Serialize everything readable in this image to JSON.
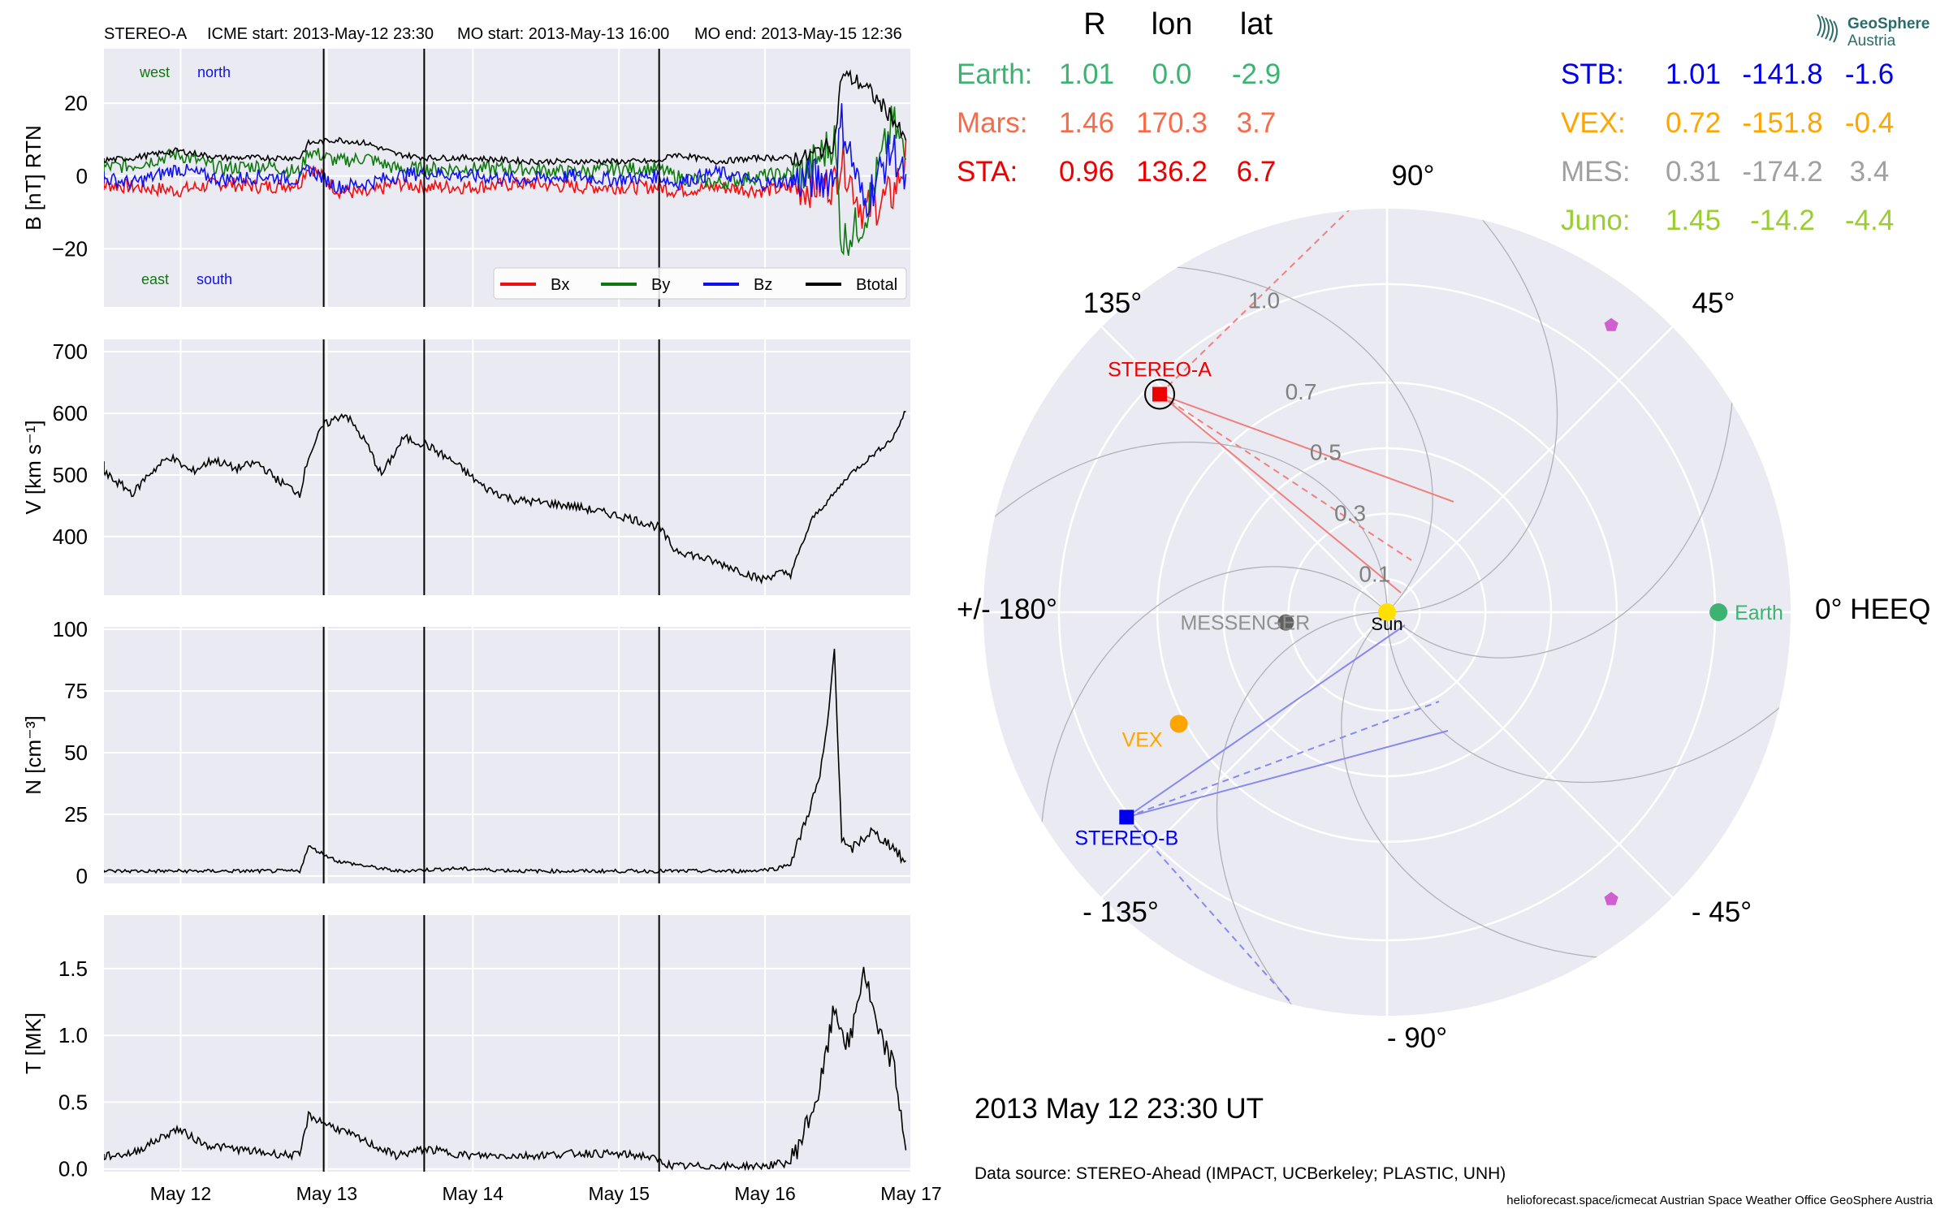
{
  "header": {
    "spacecraft": "STEREO-A",
    "icme_start": "ICME start: 2013-May-12 23:30",
    "mo_start": "MO start: 2013-May-13 16:00",
    "mo_end": "MO end: 2013-May-15 12:36"
  },
  "logo": {
    "line1": "GeoSphere",
    "line2": "Austria"
  },
  "colors": {
    "panel_bg": "#eaeaf2",
    "bx": "#ee1111",
    "by": "#117711",
    "bz": "#1111ee",
    "btotal": "#000000",
    "earth": "#3cb371",
    "mars": "#f86b4a",
    "sta": "#ee0000",
    "stb": "#0000ee",
    "vex": "#ffa500",
    "mes": "#a0a0a0",
    "juno": "#9acd32"
  },
  "position_table": {
    "headers": [
      "R",
      "lon",
      "lat"
    ],
    "left": [
      {
        "name": "Earth:",
        "r": "1.01",
        "lon": "0.0",
        "lat": "-2.9",
        "color": "#3cb371"
      },
      {
        "name": "Mars:",
        "r": "1.46",
        "lon": "170.3",
        "lat": "3.7",
        "color": "#f86b4a"
      },
      {
        "name": "STA:",
        "r": "0.96",
        "lon": "136.2",
        "lat": "6.7",
        "color": "#ee0000"
      }
    ],
    "right": [
      {
        "name": "STB:",
        "r": "1.01",
        "lon": "-141.8",
        "lat": "-1.6",
        "color": "#0000ee"
      },
      {
        "name": "VEX:",
        "r": "0.72",
        "lon": "-151.8",
        "lat": "-0.4",
        "color": "#ffa500"
      },
      {
        "name": "MES:",
        "r": "0.31",
        "lon": "-174.2",
        "lat": "3.4",
        "color": "#a0a0a0"
      },
      {
        "name": "Juno:",
        "r": "1.45",
        "lon": "-14.2",
        "lat": "-4.4",
        "color": "#9acd32"
      }
    ]
  },
  "footer": {
    "datetime": "2013 May 12  23:30 UT",
    "source": "Data source: STEREO-Ahead (IMPACT, UCBerkeley; PLASTIC, UNH)",
    "credits": "helioforecast.space/icmecat   Austrian Space Weather Office   GeoSphere Austria"
  },
  "chart_data": [
    {
      "type": "line",
      "title": "",
      "ylabel": "B [nT] RTN",
      "ylim": [
        -36,
        35
      ],
      "yticks": [
        20,
        0,
        -20
      ],
      "ytick_labels": [
        "20",
        "0",
        "−20"
      ],
      "corner_labels": {
        "top_left": "west",
        "top_right": "north",
        "bottom_left": "east",
        "bottom_right": "south"
      },
      "legend": {
        "placement": "lower-right",
        "entries": [
          "Bx",
          "By",
          "Bz",
          "Btotal"
        ]
      },
      "x_unit": "days since 2013-05-11 09:00",
      "series": [
        {
          "name": "Bx",
          "x": [
            0,
            0.3,
            0.6,
            0.9,
            1.2,
            1.44,
            1.5,
            1.7,
            1.9,
            2.1,
            2.3,
            2.6,
            3.0,
            3.3,
            3.6,
            3.9,
            4.0,
            4.3,
            4.6,
            4.9,
            5.1,
            5.15,
            5.3,
            5.5,
            5.6
          ],
          "y": [
            -2,
            -3,
            -4,
            -2,
            -3,
            -2,
            3,
            -4,
            -5,
            -2,
            -3,
            -3,
            -2,
            -3,
            -3,
            -3,
            -4,
            -3,
            -4,
            -3,
            -2,
            5,
            -10,
            -5,
            6
          ]
        },
        {
          "name": "By",
          "x": [
            0,
            0.3,
            0.6,
            0.9,
            1.2,
            1.44,
            1.5,
            1.7,
            1.9,
            2.1,
            2.3,
            2.6,
            3.0,
            3.3,
            3.6,
            3.9,
            4.0,
            4.3,
            4.6,
            4.9,
            5.1,
            5.15,
            5.3,
            5.5,
            5.6
          ],
          "y": [
            2,
            3,
            6,
            2,
            3,
            1,
            7,
            4,
            5,
            2,
            2,
            2,
            2,
            1,
            2,
            2,
            0,
            -2,
            0,
            1,
            10,
            -18,
            -12,
            15,
            3
          ]
        },
        {
          "name": "Bz",
          "x": [
            0,
            0.3,
            0.6,
            0.9,
            1.2,
            1.44,
            1.5,
            1.7,
            1.9,
            2.1,
            2.3,
            2.6,
            3.0,
            3.3,
            3.6,
            3.9,
            4.0,
            4.3,
            4.6,
            4.9,
            5.1,
            5.15,
            5.3,
            5.5,
            5.6
          ],
          "y": [
            0,
            -2,
            2,
            -1,
            0,
            -1,
            2,
            -3,
            -2,
            0,
            1,
            0,
            -1,
            0,
            -1,
            0,
            -2,
            1,
            -2,
            -1,
            0,
            15,
            -8,
            8,
            -4
          ]
        },
        {
          "name": "Btotal",
          "x": [
            0,
            0.3,
            0.6,
            0.9,
            1.2,
            1.44,
            1.5,
            1.7,
            1.9,
            2.1,
            2.3,
            2.6,
            3.0,
            3.3,
            3.6,
            3.9,
            4.0,
            4.3,
            4.6,
            4.9,
            5.1,
            5.15,
            5.3,
            5.5,
            5.6
          ],
          "y": [
            4,
            5,
            7,
            5,
            5,
            5,
            9,
            10,
            9,
            6,
            5,
            5,
            4,
            4,
            4,
            4,
            6,
            4,
            5,
            5,
            9,
            28,
            25,
            16,
            8
          ]
        }
      ]
    },
    {
      "type": "line",
      "title": "",
      "ylabel": "V [km s⁻¹]",
      "ylim": [
        305,
        720
      ],
      "yticks": [
        700,
        600,
        500,
        400
      ],
      "x_unit": "days since 2013-05-11 09:00",
      "series": [
        {
          "name": "",
          "x": [
            0,
            0.15,
            0.3,
            0.4,
            0.55,
            0.7,
            0.85,
            1.0,
            1.15,
            1.3,
            1.44,
            1.5,
            1.6,
            1.75,
            1.9,
            2.0,
            2.15,
            2.3,
            2.5,
            2.7,
            2.9,
            3.1,
            3.3,
            3.5,
            3.7,
            3.9,
            4.0,
            4.2,
            4.4,
            4.6,
            4.7,
            4.8,
            4.95,
            5.1,
            5.2,
            5.35,
            5.5,
            5.6
          ],
          "y": [
            520,
            495,
            470,
            500,
            530,
            505,
            525,
            510,
            520,
            490,
            470,
            530,
            580,
            600,
            550,
            500,
            560,
            550,
            520,
            480,
            460,
            455,
            450,
            440,
            430,
            415,
            380,
            365,
            350,
            330,
            340,
            340,
            430,
            470,
            500,
            530,
            560,
            610
          ]
        }
      ]
    },
    {
      "type": "line",
      "title": "",
      "ylabel": "N [cm⁻³]",
      "ylim": [
        -3,
        101
      ],
      "yticks": [
        100,
        75,
        50,
        25,
        0
      ],
      "x_unit": "days since 2013-05-11 09:00",
      "series": [
        {
          "name": "",
          "x": [
            0,
            0.5,
            1.0,
            1.44,
            1.5,
            1.7,
            1.9,
            2.1,
            2.5,
            3.0,
            3.5,
            4.0,
            4.5,
            4.7,
            4.8,
            4.9,
            5.0,
            5.05,
            5.1,
            5.15,
            5.2,
            5.35,
            5.5,
            5.6
          ],
          "y": [
            2,
            2,
            2,
            2,
            12,
            6,
            4,
            2,
            3,
            2,
            2,
            2,
            2,
            3,
            5,
            22,
            40,
            60,
            92,
            15,
            10,
            18,
            12,
            4
          ]
        }
      ]
    },
    {
      "type": "line",
      "title": "",
      "ylabel": "T [MK]",
      "ylim": [
        -0.02,
        1.9
      ],
      "yticks": [
        1.5,
        1.0,
        0.5,
        0.0
      ],
      "x_unit": "days since 2013-05-11 09:00",
      "series": [
        {
          "name": "",
          "x": [
            0,
            0.3,
            0.6,
            0.8,
            1.0,
            1.2,
            1.44,
            1.5,
            1.7,
            1.9,
            2.1,
            2.3,
            2.6,
            3.0,
            3.4,
            3.8,
            4.0,
            4.3,
            4.6,
            4.8,
            4.9,
            5.0,
            5.1,
            5.2,
            5.3,
            5.4,
            5.5,
            5.6
          ],
          "y": [
            0.08,
            0.12,
            0.3,
            0.18,
            0.15,
            0.12,
            0.1,
            0.4,
            0.3,
            0.2,
            0.1,
            0.15,
            0.1,
            0.1,
            0.12,
            0.1,
            0.02,
            0.02,
            0.02,
            0.05,
            0.3,
            0.6,
            1.2,
            0.9,
            1.5,
            1.0,
            0.8,
            0.1
          ]
        }
      ]
    },
    {
      "type": "scatter",
      "title": "",
      "ylabel": "",
      "xlabel": "",
      "shared_x_ticks": [
        "May 12",
        "May 13",
        "May 14",
        "May 15",
        "May 16",
        "May 17"
      ],
      "shared_x_tick_values": [
        0.625,
        1.625,
        2.625,
        3.625,
        4.625,
        5.625
      ],
      "event_lines_x": [
        1.604,
        2.292,
        3.9
      ],
      "xlim": [
        0.1,
        5.625
      ]
    },
    {
      "type": "scatter",
      "polar": true,
      "title": "",
      "theta_labels": [
        {
          "deg": 0,
          "text": "0° HEEQ"
        },
        {
          "deg": 45,
          "text": "45°"
        },
        {
          "deg": 90,
          "text": "90°"
        },
        {
          "deg": 135,
          "text": "135°"
        },
        {
          "deg": 180,
          "text": "+/- 180°"
        },
        {
          "deg": -135,
          "text": "- 135°"
        },
        {
          "deg": -90,
          "text": "- 90°"
        },
        {
          "deg": -45,
          "text": "- 45°"
        }
      ],
      "r_rings": [
        0.1,
        0.3,
        0.5,
        0.7,
        1.0
      ],
      "r_labels": [
        "0.1",
        "0.3",
        "0.5",
        "0.7",
        "1.0"
      ],
      "r_max": 1.23,
      "objects": [
        {
          "name": "Sun",
          "label": "Sun",
          "r": 0.0,
          "lon": 0,
          "marker": "circle",
          "color": "#ffe000"
        },
        {
          "name": "Earth",
          "label": "Earth",
          "r": 1.01,
          "lon": 0.0,
          "marker": "circle",
          "color": "#3cb371"
        },
        {
          "name": "STA",
          "label": "STEREO-A",
          "r": 0.96,
          "lon": 136.2,
          "marker": "square",
          "color": "#ee0000"
        },
        {
          "name": "STB",
          "label": "STEREO-B",
          "r": 1.01,
          "lon": -141.8,
          "marker": "square",
          "color": "#0000ee"
        },
        {
          "name": "VEX",
          "label": "VEX",
          "r": 0.72,
          "lon": -151.8,
          "marker": "circle",
          "color": "#ffa500"
        },
        {
          "name": "MES",
          "label": "MESSENGER",
          "r": 0.31,
          "lon": -174.2,
          "marker": "circle",
          "color": "#606060"
        },
        {
          "name": "PSP",
          "label": "",
          "r": 1.11,
          "lon": 52,
          "marker": "pentagon",
          "color": "#d060d0"
        },
        {
          "name": "SolO",
          "label": "",
          "r": 1.11,
          "lon": -52,
          "marker": "pentagon",
          "color": "#d060d0"
        }
      ]
    }
  ]
}
